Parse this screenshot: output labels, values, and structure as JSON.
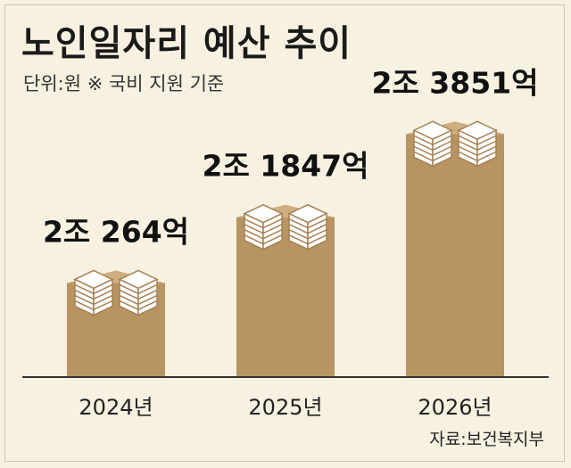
{
  "title": "노인일자리 예산 추이",
  "subtitle": "단위:원  ※ 국비 지원 기준",
  "source": "자료:보건복지부",
  "chart_data": {
    "type": "bar",
    "categories": [
      "2024년",
      "2025년",
      "2026년"
    ],
    "values": [
      20264,
      21847,
      23851
    ],
    "value_unit": "억원",
    "data_labels": [
      "2조 264억",
      "2조 1847억",
      "2조 3851억"
    ],
    "xlabel": "",
    "ylabel": "",
    "ylim": [
      18000,
      24500
    ],
    "grid": false,
    "legend": "none"
  },
  "colors": {
    "background": "#f7f1e1",
    "bar": "#b89462",
    "bar_top": "#cfae80",
    "paper": "#ffffff",
    "paper_line": "#a58155",
    "axis": "#333333"
  }
}
